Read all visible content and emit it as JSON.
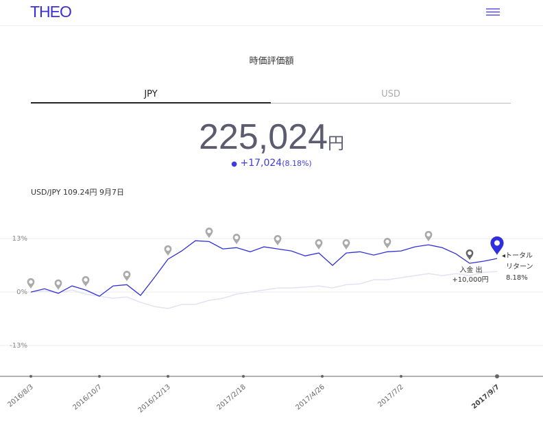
{
  "header": {
    "logo": "THEO"
  },
  "title": "時価評価額",
  "tabs": [
    "JPY",
    "USD"
  ],
  "balance": {
    "amount": "225,024",
    "unit": "円",
    "change": "+17,024",
    "change_pct": "(8.18%)"
  },
  "fx_note": "USD/JPY 109.24円 9月7日",
  "chart_data": {
    "type": "line",
    "xlim": [
      0,
      34
    ],
    "xticks": [
      {
        "value": 0,
        "label": "2016/8/3"
      },
      {
        "value": 5,
        "label": "2016/10/7"
      },
      {
        "value": 10,
        "label": "2016/12/13"
      },
      {
        "value": 15.5,
        "label": "2017/2/18"
      },
      {
        "value": 21.25,
        "label": "2017/4/26"
      },
      {
        "value": 27,
        "label": "2017/7/2"
      },
      {
        "value": 34,
        "label": "2017/9/7"
      }
    ],
    "ylim": [
      -20.5,
      22.7
    ],
    "yticks": [
      {
        "value": 13,
        "label": "13%"
      },
      {
        "value": 0,
        "label": "0%"
      },
      {
        "value": -13,
        "label": "-13%"
      }
    ],
    "grid": true,
    "series": [
      {
        "color": "#e2e2f2",
        "values": [
          0,
          0.3,
          -0.2,
          0.5,
          -0.5,
          -1,
          -1.5,
          -1.2,
          -2.5,
          -3.5,
          -4,
          -3,
          -3,
          -2,
          -1.5,
          -0.5,
          0,
          0.5,
          1,
          1,
          1.2,
          1.5,
          1,
          1.8,
          2,
          3,
          3,
          3.5,
          4,
          4.5,
          4,
          4.5,
          4,
          4.8,
          5
        ]
      },
      {
        "color": "#2f2fd8",
        "values": [
          0,
          0.8,
          -0.3,
          1.5,
          0.5,
          -1,
          1.5,
          1.8,
          -0.8,
          3.5,
          8,
          10,
          12.5,
          12.3,
          10.5,
          10.8,
          9.8,
          11,
          10.5,
          10,
          8.8,
          9.5,
          6.5,
          9.5,
          9.8,
          9,
          9.8,
          10,
          11,
          11.5,
          10.8,
          9.3,
          7,
          7.5,
          8.18
        ]
      }
    ],
    "annotations": {
      "deposit": "入金 出",
      "deposit_amount": "+10,000円",
      "total_label": "◂トータル",
      "total_label2": "リターン",
      "total_value": "8.18%"
    }
  }
}
